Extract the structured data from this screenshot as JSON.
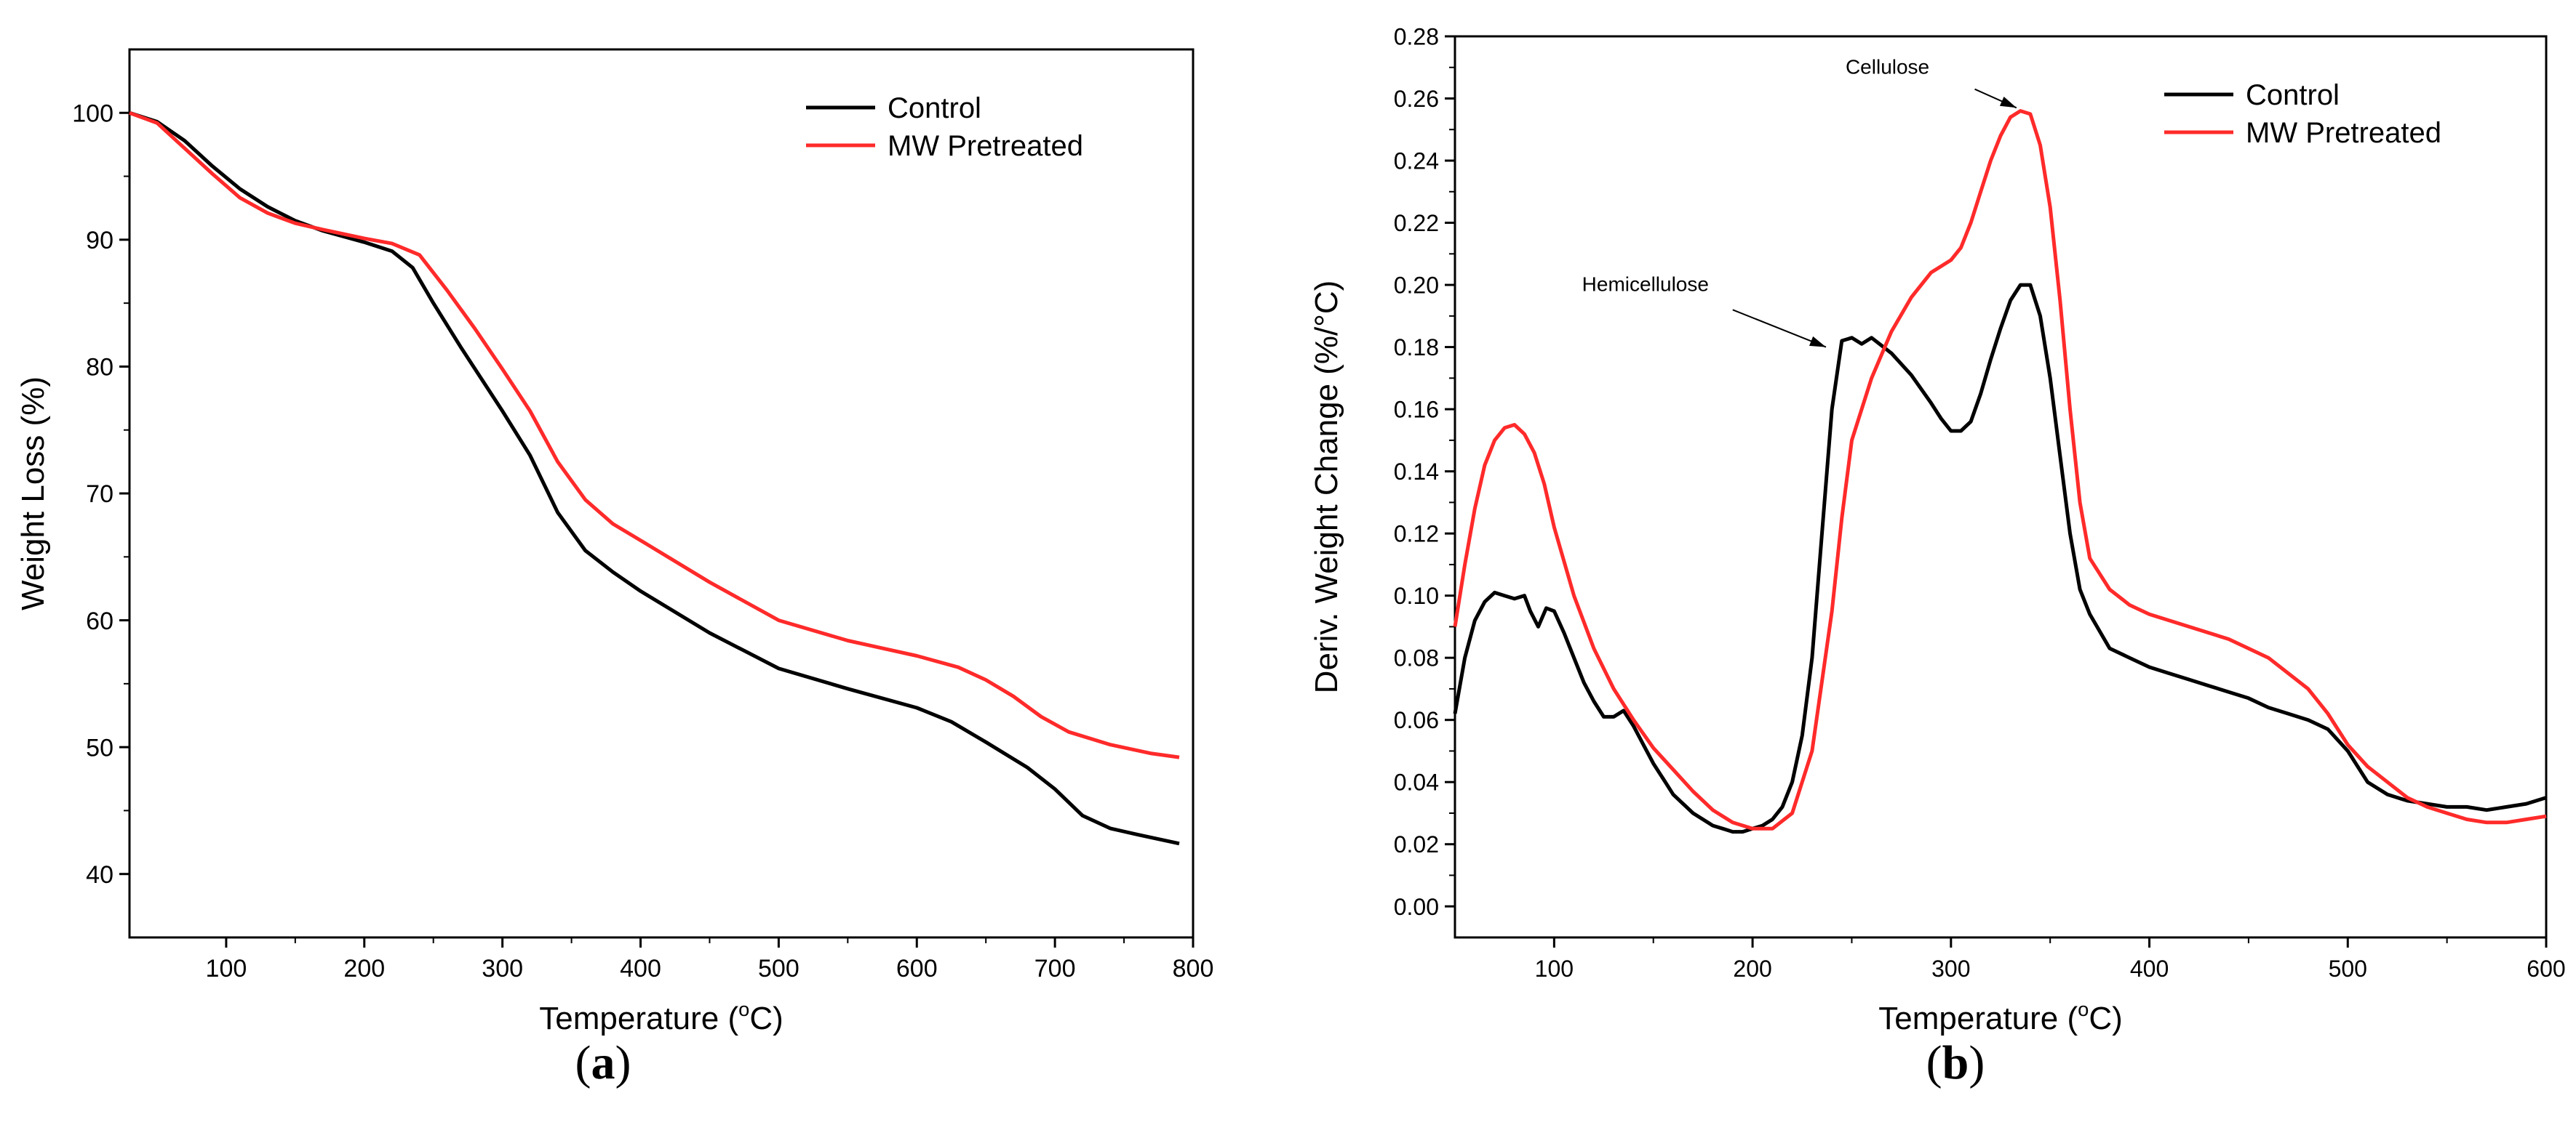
{
  "chart_data": [
    {
      "id": "a",
      "type": "line",
      "caption_letter": "a",
      "xlabel_text": "Temperature (",
      "xlabel_sup": "o",
      "xlabel_unit": "C)",
      "ylabel": "Weight Loss (%)",
      "xlim": [
        30,
        800
      ],
      "ylim": [
        35,
        105
      ],
      "xticks": [
        100,
        200,
        300,
        400,
        500,
        600,
        700,
        800
      ],
      "yticks": [
        40,
        50,
        60,
        70,
        80,
        90,
        100
      ],
      "legend_position": "top-right",
      "series": [
        {
          "name": "Control",
          "color": "#000000",
          "x": [
            30,
            50,
            70,
            90,
            110,
            130,
            150,
            170,
            200,
            220,
            235,
            250,
            270,
            300,
            320,
            340,
            360,
            380,
            400,
            450,
            500,
            550,
            600,
            625,
            650,
            680,
            700,
            720,
            740,
            760,
            790
          ],
          "y": [
            100,
            99.3,
            97.8,
            95.8,
            94.0,
            92.6,
            91.5,
            90.7,
            89.8,
            89.1,
            87.8,
            85.0,
            81.5,
            76.5,
            73.0,
            68.5,
            65.5,
            63.8,
            62.3,
            59.0,
            56.2,
            54.6,
            53.1,
            52.0,
            50.4,
            48.4,
            46.7,
            44.6,
            43.6,
            43.1,
            42.4
          ]
        },
        {
          "name": "MW Pretreated",
          "color": "#ff2a2a",
          "x": [
            30,
            50,
            70,
            90,
            110,
            130,
            150,
            170,
            200,
            220,
            240,
            260,
            280,
            300,
            320,
            340,
            360,
            380,
            400,
            450,
            500,
            550,
            600,
            630,
            650,
            670,
            690,
            710,
            740,
            770,
            790
          ],
          "y": [
            100,
            99.2,
            97.2,
            95.2,
            93.3,
            92.1,
            91.3,
            90.8,
            90.1,
            89.7,
            88.8,
            86.0,
            83.0,
            79.8,
            76.5,
            72.5,
            69.5,
            67.6,
            66.3,
            63.0,
            60.0,
            58.4,
            57.2,
            56.3,
            55.3,
            54.0,
            52.4,
            51.2,
            50.2,
            49.5,
            49.2
          ]
        }
      ]
    },
    {
      "id": "b",
      "type": "line",
      "caption_letter": "b",
      "xlabel_text": "Temperature (",
      "xlabel_sup": "o",
      "xlabel_unit": "C)",
      "ylabel": "Deriv. Weight Change (%/°C)",
      "xlim": [
        50,
        600
      ],
      "ylim": [
        -0.01,
        0.28
      ],
      "xticks": [
        100,
        200,
        300,
        400,
        500,
        600
      ],
      "yticks": [
        0.0,
        0.02,
        0.04,
        0.06,
        0.08,
        0.1,
        0.12,
        0.14,
        0.16,
        0.18,
        0.2,
        0.22,
        0.24,
        0.26,
        0.28
      ],
      "ytick_labels": [
        "0.00",
        "0.02",
        "0.04",
        "0.06",
        "0.08",
        "0.10",
        "0.12",
        "0.14",
        "0.16",
        "0.18",
        "0.20",
        "0.22",
        "0.24",
        "0.26",
        "0.28"
      ],
      "legend_position": "top-right",
      "annotations": [
        {
          "text": "Cellulose",
          "text_at": [
            268,
            0.268
          ],
          "arrow_from": [
            312,
            0.263
          ],
          "arrow_to": [
            333,
            0.257
          ]
        },
        {
          "text": "Hemicellulose",
          "text_at": [
            146,
            0.198
          ],
          "arrow_from": [
            190,
            0.192
          ],
          "arrow_to": [
            237,
            0.18
          ]
        }
      ],
      "series": [
        {
          "name": "Control",
          "color": "#000000",
          "x": [
            50,
            55,
            60,
            65,
            70,
            75,
            80,
            85,
            88,
            92,
            96,
            100,
            105,
            110,
            115,
            120,
            125,
            130,
            135,
            140,
            145,
            150,
            155,
            160,
            170,
            180,
            185,
            190,
            195,
            200,
            205,
            210,
            215,
            220,
            225,
            230,
            235,
            240,
            245,
            250,
            255,
            260,
            270,
            280,
            290,
            295,
            300,
            305,
            310,
            315,
            320,
            325,
            330,
            335,
            340,
            345,
            350,
            355,
            360,
            365,
            370,
            380,
            390,
            400,
            410,
            420,
            430,
            440,
            450,
            460,
            470,
            480,
            490,
            500,
            510,
            520,
            530,
            540,
            550,
            560,
            570,
            580,
            590,
            600
          ],
          "y": [
            0.062,
            0.08,
            0.092,
            0.098,
            0.101,
            0.1,
            0.099,
            0.1,
            0.095,
            0.09,
            0.096,
            0.095,
            0.088,
            0.08,
            0.072,
            0.066,
            0.061,
            0.061,
            0.063,
            0.058,
            0.052,
            0.046,
            0.041,
            0.036,
            0.03,
            0.026,
            0.025,
            0.024,
            0.024,
            0.025,
            0.026,
            0.028,
            0.032,
            0.04,
            0.055,
            0.08,
            0.12,
            0.16,
            0.182,
            0.183,
            0.181,
            0.183,
            0.178,
            0.171,
            0.162,
            0.157,
            0.153,
            0.153,
            0.156,
            0.165,
            0.176,
            0.186,
            0.195,
            0.2,
            0.2,
            0.19,
            0.17,
            0.145,
            0.12,
            0.102,
            0.094,
            0.083,
            0.08,
            0.077,
            0.075,
            0.073,
            0.071,
            0.069,
            0.067,
            0.064,
            0.062,
            0.06,
            0.057,
            0.05,
            0.04,
            0.036,
            0.034,
            0.033,
            0.032,
            0.032,
            0.031,
            0.032,
            0.033,
            0.035
          ]
        },
        {
          "name": "MW Pretreated",
          "color": "#ff2a2a",
          "x": [
            50,
            55,
            60,
            65,
            70,
            75,
            80,
            85,
            90,
            95,
            100,
            110,
            120,
            130,
            140,
            150,
            160,
            170,
            180,
            190,
            200,
            210,
            220,
            230,
            240,
            245,
            250,
            260,
            270,
            280,
            290,
            300,
            305,
            310,
            315,
            320,
            325,
            330,
            335,
            340,
            345,
            350,
            355,
            360,
            365,
            370,
            380,
            390,
            400,
            420,
            440,
            460,
            480,
            490,
            500,
            510,
            520,
            530,
            540,
            550,
            560,
            570,
            580,
            590,
            600
          ],
          "y": [
            0.09,
            0.11,
            0.128,
            0.142,
            0.15,
            0.154,
            0.155,
            0.152,
            0.146,
            0.136,
            0.122,
            0.1,
            0.083,
            0.07,
            0.06,
            0.051,
            0.044,
            0.037,
            0.031,
            0.027,
            0.025,
            0.025,
            0.03,
            0.05,
            0.095,
            0.125,
            0.15,
            0.17,
            0.185,
            0.196,
            0.204,
            0.208,
            0.212,
            0.22,
            0.23,
            0.24,
            0.248,
            0.254,
            0.256,
            0.255,
            0.245,
            0.225,
            0.195,
            0.16,
            0.13,
            0.112,
            0.102,
            0.097,
            0.094,
            0.09,
            0.086,
            0.08,
            0.07,
            0.062,
            0.052,
            0.045,
            0.04,
            0.035,
            0.032,
            0.03,
            0.028,
            0.027,
            0.027,
            0.028,
            0.029
          ]
        }
      ]
    }
  ]
}
